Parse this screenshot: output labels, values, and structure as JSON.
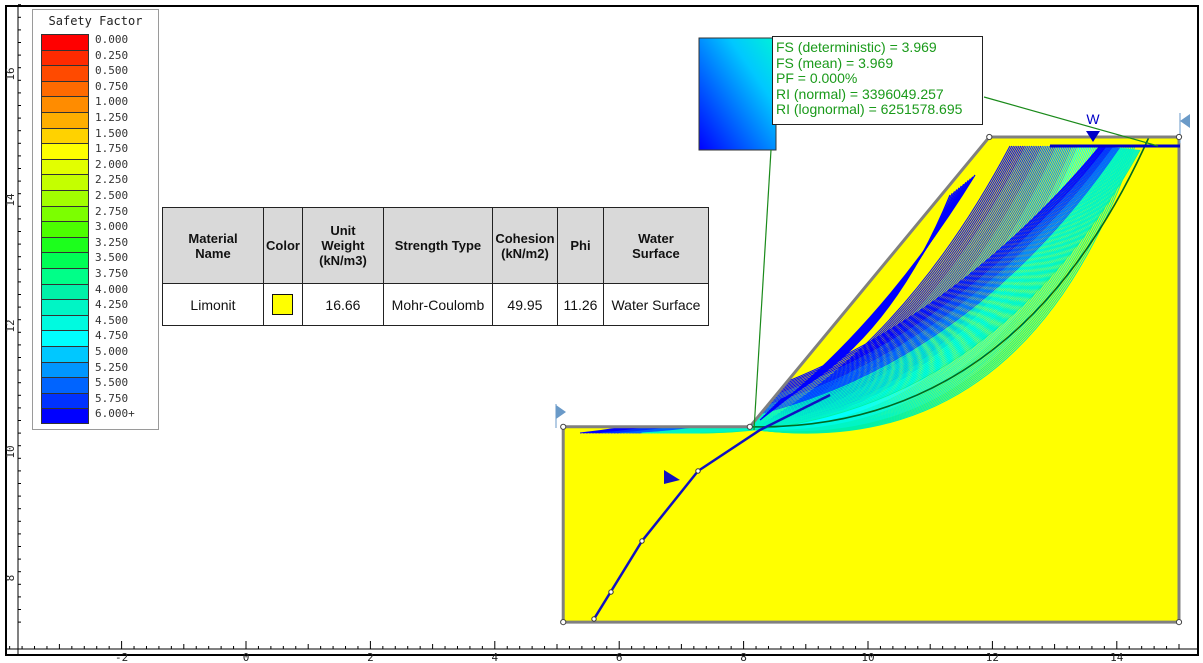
{
  "legend": {
    "title": "Safety Factor",
    "entries": [
      {
        "label": "0.000",
        "color": "#ff0000"
      },
      {
        "label": "0.250",
        "color": "#ff2a00"
      },
      {
        "label": "0.500",
        "color": "#ff4a00"
      },
      {
        "label": "0.750",
        "color": "#ff6a00"
      },
      {
        "label": "1.000",
        "color": "#ff8c00"
      },
      {
        "label": "1.250",
        "color": "#ffae00"
      },
      {
        "label": "1.500",
        "color": "#ffd200"
      },
      {
        "label": "1.750",
        "color": "#ffff00"
      },
      {
        "label": "2.000",
        "color": "#e2ff00"
      },
      {
        "label": "2.250",
        "color": "#c4ff00"
      },
      {
        "label": "2.500",
        "color": "#a2ff00"
      },
      {
        "label": "2.750",
        "color": "#7cff00"
      },
      {
        "label": "3.000",
        "color": "#4cff00"
      },
      {
        "label": "3.250",
        "color": "#1cff1c"
      },
      {
        "label": "3.500",
        "color": "#00ff55"
      },
      {
        "label": "3.750",
        "color": "#00ff88"
      },
      {
        "label": "4.000",
        "color": "#00f2a8"
      },
      {
        "label": "4.250",
        "color": "#00f5c5"
      },
      {
        "label": "4.500",
        "color": "#00fae0"
      },
      {
        "label": "4.750",
        "color": "#00ffff"
      },
      {
        "label": "5.000",
        "color": "#00c8ff"
      },
      {
        "label": "5.250",
        "color": "#0096ff"
      },
      {
        "label": "5.500",
        "color": "#0064ff"
      },
      {
        "label": "5.750",
        "color": "#0032ff"
      },
      {
        "label": "6.000+",
        "color": "#0000ff"
      }
    ]
  },
  "material_table": {
    "headers": [
      "Material Name",
      "Color",
      "Unit Weight (kN/m3)",
      "Strength Type",
      "Cohesion (kN/m2)",
      "Phi",
      "Water Surface"
    ],
    "header_lines": [
      [
        "Material",
        "Name"
      ],
      [
        "Color"
      ],
      [
        "Unit",
        "Weight",
        "(kN/m3)"
      ],
      [
        "Strength Type"
      ],
      [
        "Cohesion",
        "(kN/m2)"
      ],
      [
        "Phi"
      ],
      [
        "Water",
        "Surface"
      ]
    ],
    "rows": [
      {
        "name": "Limonit",
        "color": "#ffff00",
        "unit_weight": "16.66",
        "strength_type": "Mohr-Coulomb",
        "cohesion": "49.95",
        "phi": "11.26",
        "water_surface": "Water Surface"
      }
    ]
  },
  "results": {
    "fs_deterministic": "FS (deterministic) = 3.969",
    "fs_mean": "FS (mean) = 3.969",
    "pf": "PF = 0.000%",
    "ri_normal": "RI (normal) = 3396049.257",
    "ri_lognormal": "RI (lognormal) = 6251578.695",
    "text_color": "#1a9a1a"
  },
  "model": {
    "material_color": "#ffff00",
    "water_label": "W",
    "geometry_m": {
      "toe_left": [
        5.1,
        10.4
      ],
      "toe_crest": [
        8.1,
        10.4
      ],
      "slope_top": [
        11.95,
        15.0
      ],
      "right_top": [
        15.0,
        15.0
      ],
      "bottom_left": [
        5.1,
        7.3
      ],
      "bottom_right": [
        15.0,
        7.3
      ]
    }
  },
  "axes": {
    "x_ticks": [
      "-2",
      "0",
      "2",
      "4",
      "6",
      "8",
      "10",
      "12",
      "14"
    ],
    "x_values": [
      -2,
      0,
      2,
      4,
      6,
      8,
      10,
      12,
      14
    ],
    "y_ticks": [
      "8",
      "10",
      "12",
      "14",
      "16"
    ],
    "y_values": [
      8,
      10,
      12,
      14,
      16
    ],
    "x_range": [
      -3.9,
      15.2
    ],
    "y_range": [
      7.3,
      17.3
    ]
  }
}
